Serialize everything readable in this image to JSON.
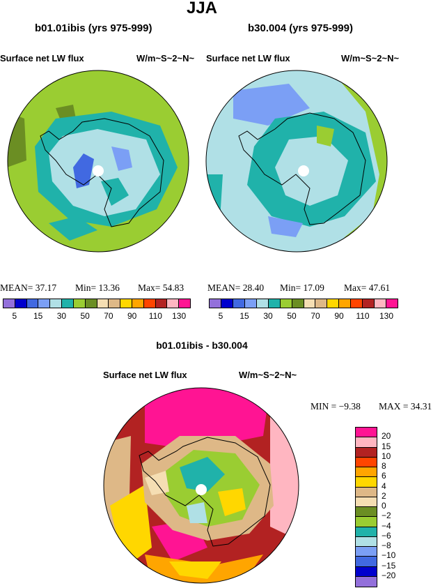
{
  "title": "JJA",
  "panels": [
    {
      "case": "b01.01ibis (yrs 975-999)",
      "variable": "Surface net LW flux",
      "units": "W/m~S~2~N~",
      "mean": "MEAN=  37.17",
      "min": "Min=  13.36",
      "max": "Max=  54.83"
    },
    {
      "case": "b30.004 (yrs 975-999)",
      "variable": "Surface net LW flux",
      "units": "W/m~S~2~N~",
      "mean": "MEAN=  28.40",
      "min": "Min=  17.09",
      "max": "Max=  47.61"
    }
  ],
  "diff": {
    "title": "b01.01ibis - b30.004",
    "variable": "Surface net LW flux",
    "units": "W/m~S~2~N~",
    "min": "MIN =   −9.38",
    "max": "MAX =   34.31"
  },
  "colorbar": {
    "colors": [
      "#9370db",
      "#0000cd",
      "#4169e1",
      "#7b9ff5",
      "#b0e0e6",
      "#20b2aa",
      "#9acd32",
      "#6b8e23",
      "#f5deb3",
      "#deb887",
      "#ffd700",
      "#ffa500",
      "#ff4500",
      "#b22222",
      "#ffb6c1",
      "#ff1493"
    ],
    "labels": [
      "5",
      "15",
      "30",
      "50",
      "70",
      "90",
      "110",
      "130"
    ]
  },
  "diff_colorbar": {
    "colors": [
      "#ff1493",
      "#ffb6c1",
      "#b22222",
      "#ff4500",
      "#ffa500",
      "#ffd700",
      "#deb887",
      "#f5deb3",
      "#6b8e23",
      "#9acd32",
      "#20b2aa",
      "#b0e0e6",
      "#7b9ff5",
      "#4169e1",
      "#0000cd",
      "#9370db"
    ],
    "labels": [
      "20",
      "15",
      "10",
      "8",
      "6",
      "4",
      "2",
      "0",
      "−2",
      "−4",
      "−6",
      "−8",
      "−10",
      "−15",
      "−20"
    ]
  },
  "map_colors": {
    "green_light": "#9acd32",
    "green_dark": "#6b8e23",
    "teal": "#20b2aa",
    "powder": "#b0e0e6",
    "blue_light": "#7b9ff5",
    "blue": "#4169e1",
    "pink": "#ff1493",
    "pink_light": "#ffb6c1",
    "red_dark": "#b22222",
    "orange_red": "#ff4500",
    "orange": "#ffa500",
    "yellow": "#ffd700",
    "tan": "#deb887",
    "wheat": "#f5deb3"
  }
}
